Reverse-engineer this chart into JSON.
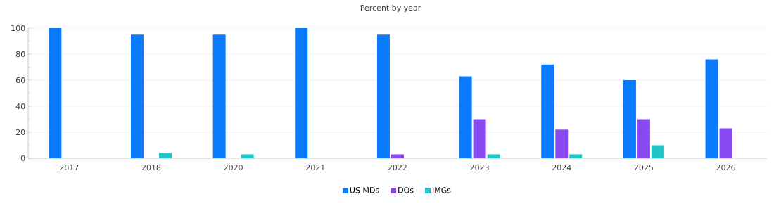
{
  "chart_data": {
    "type": "bar",
    "title": "Percent by year",
    "categories": [
      "2017",
      "2018",
      "2020",
      "2021",
      "2022",
      "2023",
      "2024",
      "2025",
      "2026"
    ],
    "series": [
      {
        "name": "US MDs",
        "color": "#0a7aff",
        "values": [
          100,
          95,
          95,
          100,
          95,
          63,
          72,
          60,
          76
        ]
      },
      {
        "name": "DOs",
        "color": "#8a4af3",
        "values": [
          null,
          null,
          null,
          null,
          3,
          30,
          22,
          30,
          23
        ]
      },
      {
        "name": "IMGs",
        "color": "#22c5c5",
        "values": [
          null,
          4,
          3,
          null,
          null,
          3,
          3,
          10,
          null
        ]
      }
    ],
    "ylim": [
      0,
      100
    ],
    "yticks": [
      0,
      20,
      40,
      60,
      80,
      100
    ],
    "grid": "y",
    "legend": "bottom"
  }
}
